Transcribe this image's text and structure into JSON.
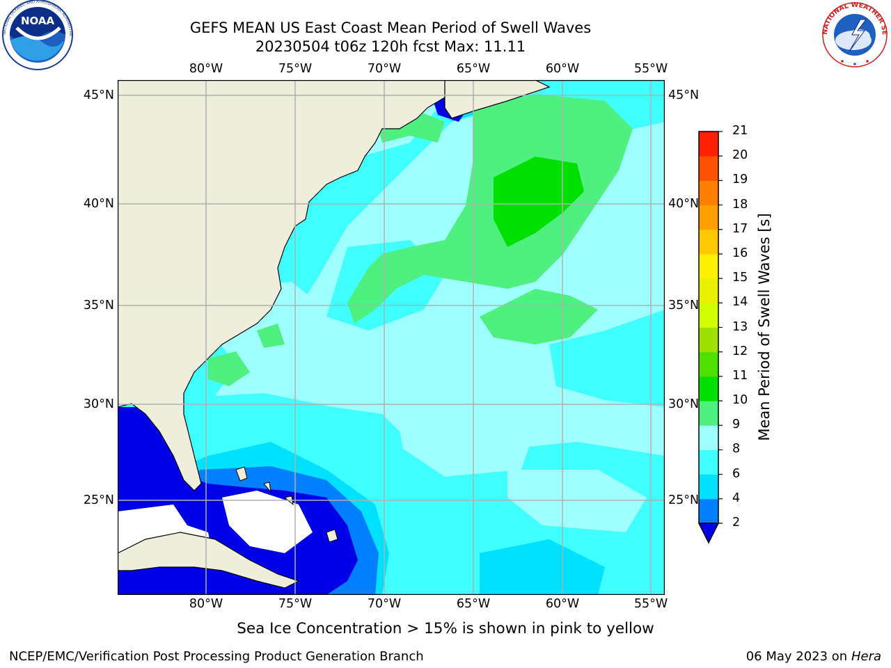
{
  "title_line1": "GEFS MEAN US East Coast Mean Period of Swell Waves",
  "title_line2": "20230504 t06z 120h fcst   Max: 11.11",
  "lon_ticks": [
    "80°W",
    "75°W",
    "70°W",
    "65°W",
    "60°W",
    "55°W"
  ],
  "lat_ticks": [
    "45°N",
    "40°N",
    "35°N",
    "30°N",
    "25°N"
  ],
  "colorbar": {
    "label": "Mean Period of Swell Waves [s]",
    "ticks": [
      "2",
      "4",
      "6",
      "8",
      "9",
      "10",
      "11",
      "12",
      "13",
      "14",
      "15",
      "16",
      "17",
      "18",
      "19",
      "20",
      "21"
    ],
    "colors": [
      "#0000e6",
      "#0080ff",
      "#00e0ff",
      "#40ffff",
      "#a0ffff",
      "#50f080",
      "#00e000",
      "#50e000",
      "#a0e000",
      "#d0ff00",
      "#e8f000",
      "#fff000",
      "#ffc800",
      "#ffa000",
      "#ff8000",
      "#ff5000",
      "#ff2000",
      "#ff0000"
    ],
    "under_color": "#0000e6"
  },
  "land_color": "#eeeedd",
  "note": "Sea Ice Concentration > 15% is shown in pink to yellow",
  "credit": "NCEP/EMC/Verification Post Processing Product Generation Branch",
  "date": "06 May 2023 on",
  "host": "Hera",
  "logos": {
    "noaa_text": "NOAA",
    "noaa_ring": "NATIONAL OCEANIC AND ATMOSPHERIC ADMINISTRATION · U.S. DEPARTMENT OF COMMERCE",
    "nws_ring": "NATIONAL WEATHER SERVICE"
  }
}
